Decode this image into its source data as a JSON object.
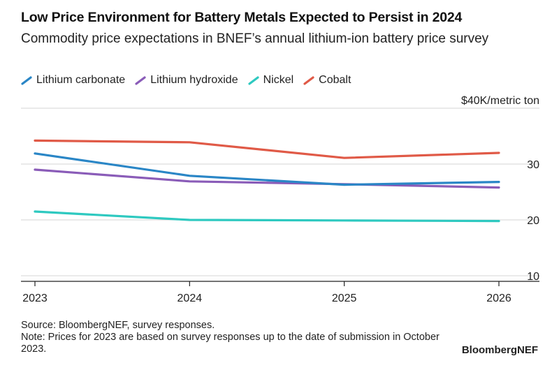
{
  "title": "Low Price Environment for Battery Metals Expected to Persist in 2024",
  "subtitle": "Commodity price expectations in BNEF’s annual lithium-ion battery price survey",
  "unit_label": "$40K/metric ton",
  "source": "Source: BloombergNEF, survey responses.",
  "note": "Note: Prices for 2023 are based on survey responses up to the date of submission in October 2023.",
  "brand": "BloombergNEF",
  "chart_data": {
    "type": "line",
    "x": [
      "2023",
      "2024",
      "2025",
      "2026"
    ],
    "ylim": [
      9,
      40
    ],
    "yticks": [
      10,
      20,
      30
    ],
    "ytick_labels": [
      "10",
      "20",
      "30"
    ],
    "grid": true,
    "legend_position": "top-left",
    "series": [
      {
        "name": "Lithium carbonate",
        "color": "#2a86c6",
        "values": [
          31.9,
          27.9,
          26.3,
          26.8
        ]
      },
      {
        "name": "Lithium hydroxide",
        "color": "#8a5cb8",
        "values": [
          29.0,
          26.9,
          26.4,
          25.8
        ]
      },
      {
        "name": "Nickel",
        "color": "#2ec9c0",
        "values": [
          21.5,
          20.0,
          19.9,
          19.8
        ]
      },
      {
        "name": "Cobalt",
        "color": "#e05a47",
        "values": [
          34.2,
          33.9,
          31.1,
          32.0
        ]
      }
    ]
  }
}
